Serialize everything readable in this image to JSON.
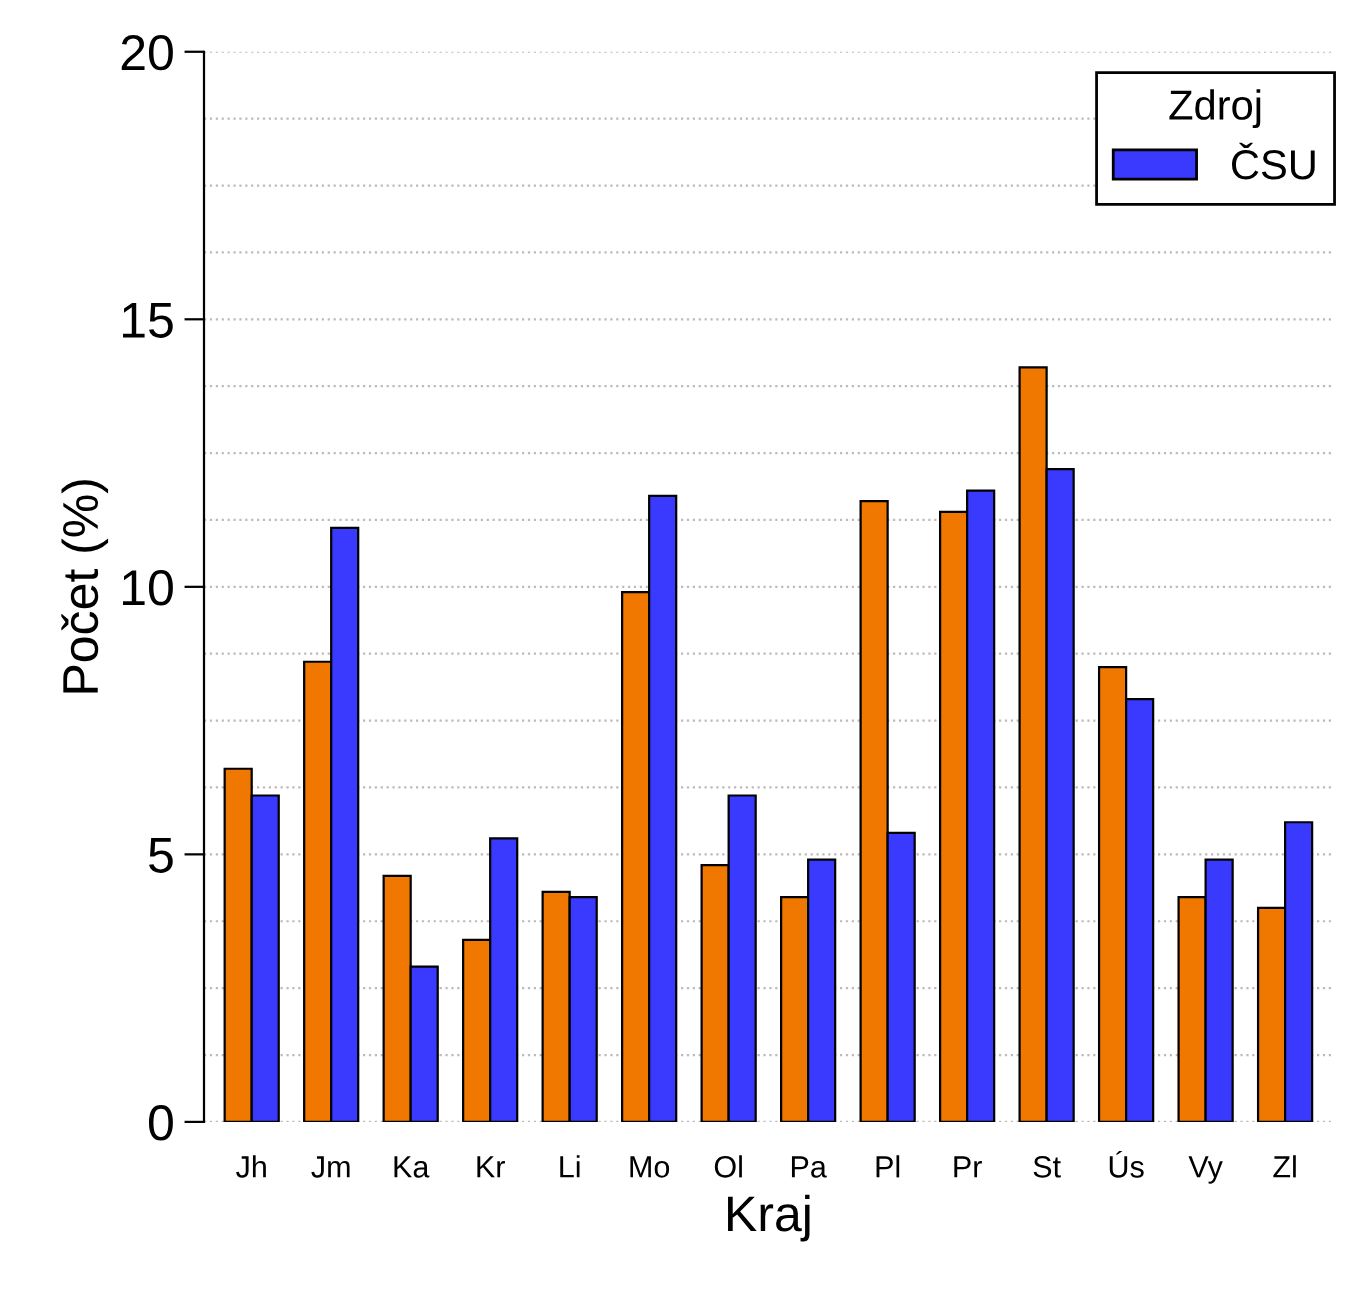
{
  "chart_data": {
    "type": "bar",
    "xlabel": "Kraj",
    "ylabel": "Počet (%)",
    "legend_title": "Zdroj",
    "legend": "top right",
    "grid": "y",
    "categories": [
      "Jh",
      "Jm",
      "Ka",
      "Kr",
      "Li",
      "Mo",
      "Ol",
      "Pa",
      "Pl",
      "Pr",
      "St",
      "Ús",
      "Vy",
      "Zl"
    ],
    "series": [
      {
        "color": "#f07800",
        "values": [
          6.6,
          8.6,
          4.6,
          3.4,
          4.3,
          9.9,
          4.8,
          4.2,
          11.6,
          11.4,
          14.1,
          8.5,
          4.2,
          4.0
        ]
      },
      {
        "name": "ČSU",
        "color": "#3a3aff",
        "values": [
          6.1,
          11.1,
          2.9,
          5.3,
          4.2,
          11.7,
          6.1,
          4.9,
          5.4,
          11.8,
          12.2,
          7.9,
          4.9,
          5.6
        ]
      }
    ],
    "ylim": [
      0,
      20
    ],
    "yticks": [
      0,
      {
        "value": 1.25,
        "label": null
      },
      {
        "value": 2.5,
        "label": null
      },
      {
        "value": 3.75,
        "label": null
      },
      5,
      {
        "value": 6.25,
        "label": null
      },
      {
        "value": 7.5,
        "label": null
      },
      {
        "value": 8.75,
        "label": null
      },
      10,
      {
        "value": 11.25,
        "label": null
      },
      {
        "value": 12.5,
        "label": null
      },
      {
        "value": 13.75,
        "label": null
      },
      15,
      {
        "value": 16.25,
        "label": null
      },
      {
        "value": 17.5,
        "label": null
      },
      {
        "value": 18.75,
        "label": null
      },
      20
    ]
  }
}
